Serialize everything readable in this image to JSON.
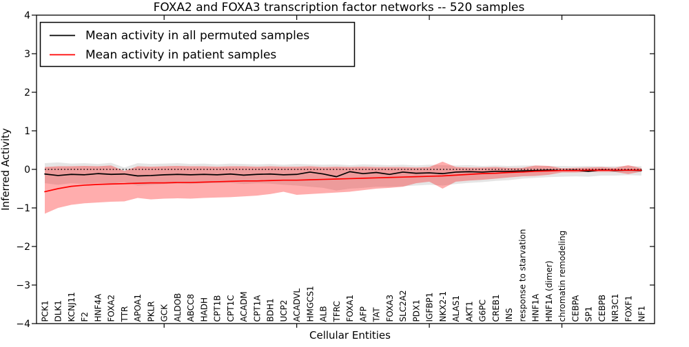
{
  "chart_data": {
    "type": "line",
    "title": "FOXA2 and FOXA3 transcription factor networks -- 520 samples",
    "xlabel": "Cellular Entities",
    "ylabel": "Inferred Activity",
    "ylim": [
      -4,
      4
    ],
    "yticks": [
      4,
      3,
      2,
      1,
      0,
      -1,
      -2,
      -3,
      -4
    ],
    "x_major_tick_indices": [
      9,
      19,
      29,
      39
    ],
    "grid": false,
    "legend_position": "upper left",
    "zero_line": {
      "y": 0,
      "style": "dotted",
      "color": "#000000"
    },
    "categories": [
      "PCK1",
      "DLK1",
      "KCNJ11",
      "F2",
      "HNF4A",
      "FOXA2",
      "TTR",
      "APOA1",
      "PKLR",
      "GCK",
      "ALDOB",
      "ABCC8",
      "HADH",
      "CPT1B",
      "CPT1C",
      "ACADM",
      "CPT1A",
      "BDH1",
      "UCP2",
      "ACADVL",
      "HMGCS1",
      "ALB",
      "TFRC",
      "FOXA1",
      "AFP",
      "TAT",
      "FOXA3",
      "SLC2A2",
      "PDX1",
      "IGFBP1",
      "NKX2-1",
      "ALAS1",
      "AKT1",
      "G6PC",
      "CREB1",
      "INS",
      "response to starvation",
      "HNF1A",
      "HNF1A (dimer)",
      "chromatin remodeling",
      "CEBPA",
      "SP1",
      "CEBPB",
      "NR3C1",
      "FOXF1",
      "NF1"
    ],
    "series": [
      {
        "name": "Mean activity in all permuted samples",
        "color": "#000000",
        "values": [
          -0.12,
          -0.16,
          -0.13,
          -0.14,
          -0.11,
          -0.13,
          -0.12,
          -0.17,
          -0.16,
          -0.14,
          -0.13,
          -0.14,
          -0.13,
          -0.14,
          -0.12,
          -0.15,
          -0.13,
          -0.12,
          -0.14,
          -0.13,
          -0.07,
          -0.12,
          -0.19,
          -0.06,
          -0.11,
          -0.08,
          -0.13,
          -0.07,
          -0.1,
          -0.09,
          -0.11,
          -0.07,
          -0.06,
          -0.07,
          -0.05,
          -0.05,
          -0.04,
          -0.03,
          -0.02,
          -0.03,
          -0.02,
          -0.05,
          -0.01,
          -0.03,
          -0.02,
          -0.03
        ]
      },
      {
        "name": "Mean activity in patient samples",
        "color": "#ff0000",
        "values": [
          -0.58,
          -0.5,
          -0.44,
          -0.41,
          -0.39,
          -0.38,
          -0.37,
          -0.36,
          -0.35,
          -0.35,
          -0.34,
          -0.34,
          -0.33,
          -0.32,
          -0.31,
          -0.3,
          -0.3,
          -0.29,
          -0.28,
          -0.28,
          -0.27,
          -0.26,
          -0.25,
          -0.24,
          -0.23,
          -0.22,
          -0.21,
          -0.2,
          -0.19,
          -0.18,
          -0.17,
          -0.15,
          -0.13,
          -0.11,
          -0.1,
          -0.08,
          -0.07,
          -0.05,
          -0.04,
          -0.03,
          -0.03,
          -0.02,
          -0.02,
          -0.02,
          -0.02,
          -0.02
        ]
      }
    ],
    "bands": [
      {
        "name": "permuted samples confidence band",
        "color": "#000000",
        "opacity": 0.1,
        "upper": [
          0.16,
          0.18,
          0.15,
          0.16,
          0.14,
          0.17,
          0.05,
          0.16,
          0.14,
          0.15,
          0.16,
          0.14,
          0.15,
          0.13,
          0.15,
          0.14,
          0.13,
          0.14,
          0.12,
          0.14,
          0.13,
          0.12,
          0.13,
          0.11,
          0.13,
          0.12,
          0.11,
          0.12,
          0.1,
          0.12,
          0.11,
          0.1,
          0.11,
          0.09,
          0.1,
          0.09,
          0.1,
          0.1,
          0.09,
          0.09,
          0.08,
          0.09,
          0.08,
          0.08,
          0.09,
          0.08
        ],
        "lower": [
          -0.36,
          -0.4,
          -0.36,
          -0.38,
          -0.35,
          -0.37,
          -0.33,
          -0.42,
          -0.4,
          -0.38,
          -0.37,
          -0.38,
          -0.36,
          -0.36,
          -0.35,
          -0.38,
          -0.36,
          -0.37,
          -0.4,
          -0.42,
          -0.45,
          -0.48,
          -0.55,
          -0.5,
          -0.48,
          -0.45,
          -0.45,
          -0.44,
          -0.42,
          -0.4,
          -0.42,
          -0.38,
          -0.35,
          -0.33,
          -0.3,
          -0.28,
          -0.24,
          -0.22,
          -0.2,
          -0.19,
          -0.18,
          -0.19,
          -0.16,
          -0.16,
          -0.15,
          -0.16
        ]
      },
      {
        "name": "patient samples confidence band",
        "color": "#ff0000",
        "opacity": 0.32,
        "upper": [
          0.06,
          0.08,
          0.08,
          0.09,
          0.08,
          0.1,
          -0.04,
          0.08,
          0.07,
          0.08,
          0.09,
          0.08,
          0.08,
          0.07,
          0.08,
          0.08,
          0.07,
          0.08,
          0.07,
          0.07,
          0.08,
          0.06,
          0.07,
          0.06,
          0.07,
          0.06,
          0.06,
          0.06,
          0.05,
          0.06,
          0.2,
          0.06,
          0.05,
          0.05,
          0.06,
          0.04,
          0.04,
          0.1,
          0.09,
          0.03,
          0.04,
          0.05,
          0.06,
          0.04,
          0.11,
          0.03
        ],
        "lower": [
          -1.15,
          -1.0,
          -0.92,
          -0.88,
          -0.86,
          -0.84,
          -0.83,
          -0.74,
          -0.78,
          -0.76,
          -0.75,
          -0.76,
          -0.74,
          -0.73,
          -0.72,
          -0.7,
          -0.68,
          -0.64,
          -0.58,
          -0.66,
          -0.64,
          -0.62,
          -0.6,
          -0.58,
          -0.54,
          -0.5,
          -0.48,
          -0.45,
          -0.36,
          -0.32,
          -0.5,
          -0.32,
          -0.29,
          -0.27,
          -0.24,
          -0.21,
          -0.18,
          -0.17,
          -0.14,
          -0.08,
          -0.08,
          -0.07,
          -0.07,
          -0.07,
          -0.12,
          -0.06
        ]
      }
    ]
  }
}
